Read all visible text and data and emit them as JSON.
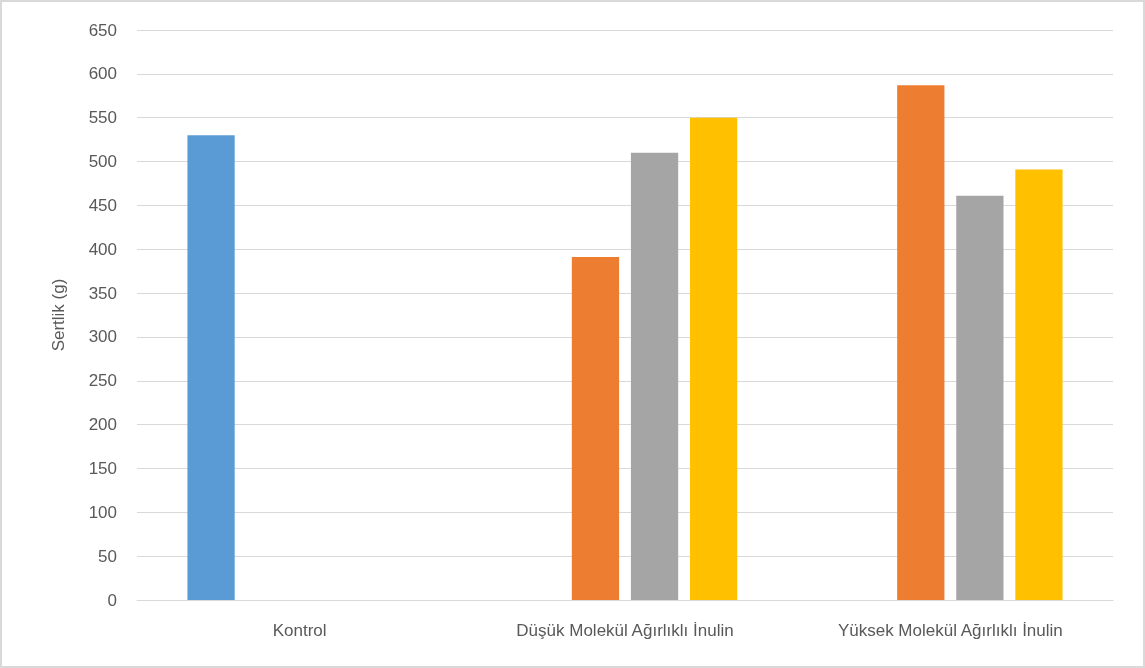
{
  "chart_data": {
    "type": "bar",
    "ylabel": "Sertlik (g)",
    "categories": [
      "Kontrol",
      "Düşük Molekül Ağırlıklı İnulin",
      "Yüksek Molekül Ağırlıklı İnulin"
    ],
    "series": [
      {
        "color": "#5b9bd5",
        "values": [
          530,
          null,
          null
        ]
      },
      {
        "color": "#ed7d31",
        "values": [
          null,
          391,
          587
        ]
      },
      {
        "color": "#a5a5a5",
        "values": [
          null,
          510,
          461
        ]
      },
      {
        "color": "#ffc000",
        "values": [
          null,
          550,
          491
        ]
      }
    ],
    "ylim": [
      0,
      650
    ],
    "yticks": [
      0,
      50,
      100,
      150,
      200,
      250,
      300,
      350,
      400,
      450,
      500,
      550,
      600,
      650
    ],
    "grid": "y"
  }
}
